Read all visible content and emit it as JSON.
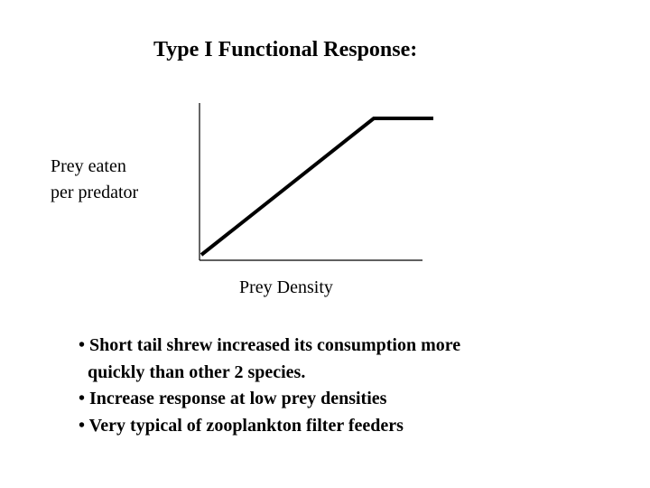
{
  "title": "Type I Functional Response:",
  "diagram": {
    "ylabel_line1": "Prey eaten",
    "ylabel_line2": "per predator",
    "xlabel": "Prey Density",
    "curve": "linear rise then plateau (saturation)"
  },
  "bullets": [
    {
      "line1": "• Short tail shrew increased its consumption more",
      "line2": "quickly than other 2 species."
    },
    {
      "line1": "• Increase response at low prey densities"
    },
    {
      "line1": "• Very typical of zooplankton filter feeders"
    }
  ]
}
